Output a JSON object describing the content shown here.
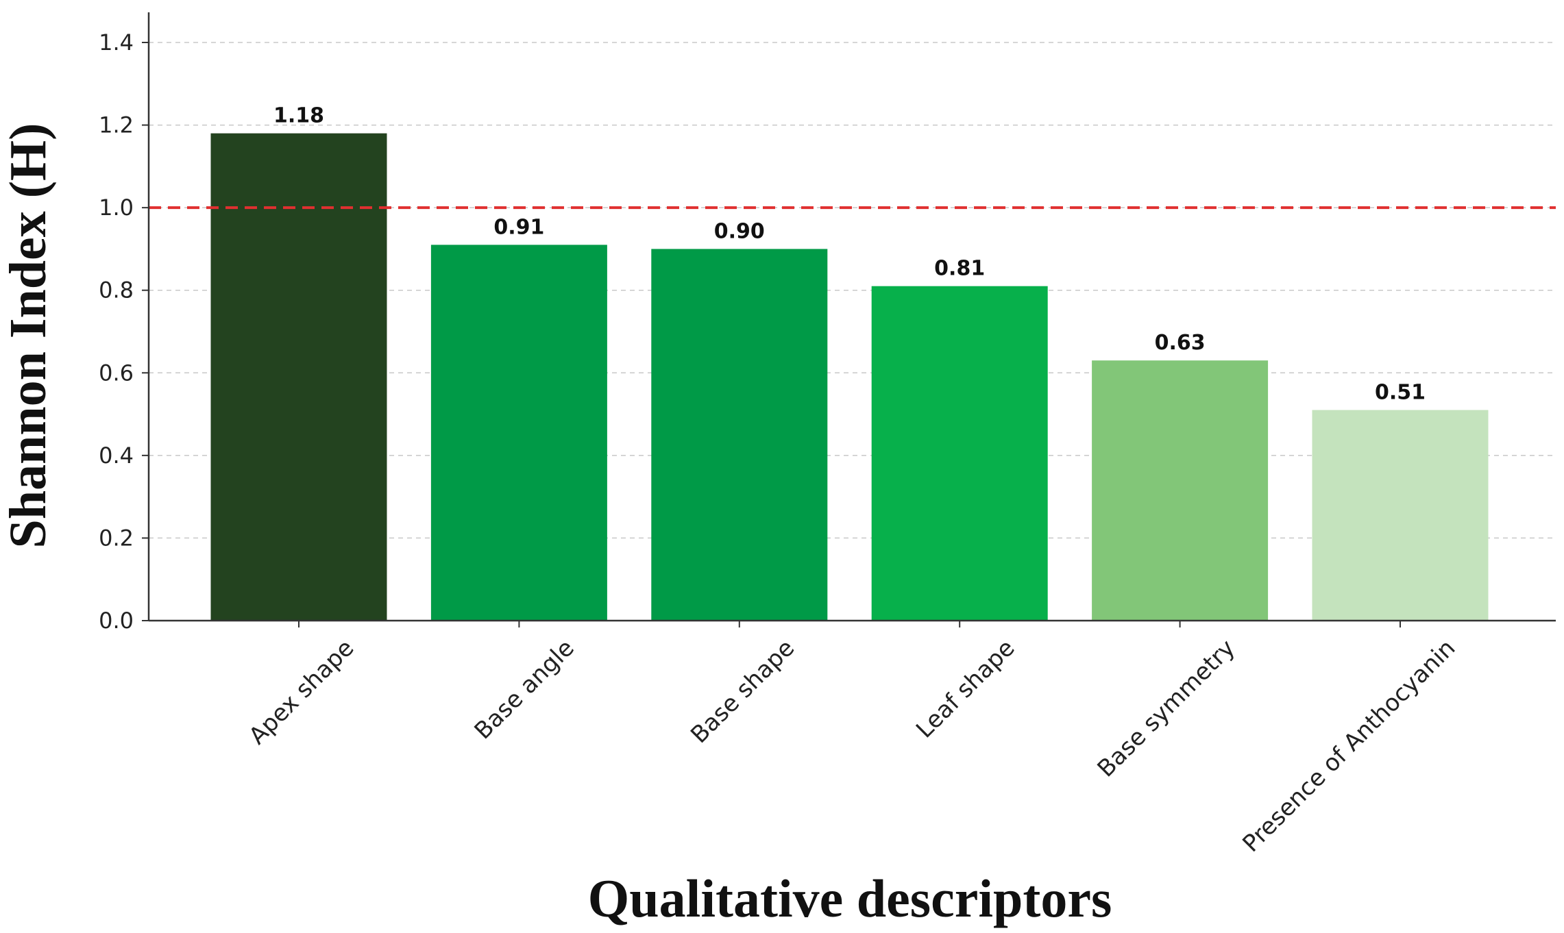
{
  "chart_data": {
    "type": "bar",
    "title": "",
    "xlabel": "Qualitative descriptors",
    "ylabel": "Shannon Index (H)",
    "categories": [
      "Apex shape",
      "Base angle",
      "Base shape",
      "Leaf shape",
      "Base symmetry",
      "Presence of Anthocyanin"
    ],
    "values": [
      1.18,
      0.91,
      0.9,
      0.81,
      0.63,
      0.51
    ],
    "value_labels": [
      "1.18",
      "0.91",
      "0.90",
      "0.81",
      "0.63",
      "0.51"
    ],
    "bar_colors": [
      "#23431f",
      "#009a47",
      "#009a47",
      "#07b04b",
      "#82c678",
      "#c4e3bd"
    ],
    "ylim": [
      0,
      1.48
    ],
    "yticks": [
      0.0,
      0.2,
      0.4,
      0.6,
      0.8,
      1.0,
      1.2,
      1.4
    ],
    "ytick_labels": [
      "0.0",
      "0.2",
      "0.4",
      "0.6",
      "0.8",
      "1.0",
      "1.2",
      "1.4"
    ],
    "grid": "y-dashed",
    "reference_line": {
      "value": 1.0,
      "color": "#e03030",
      "style": "dashed"
    },
    "legend": "none"
  }
}
